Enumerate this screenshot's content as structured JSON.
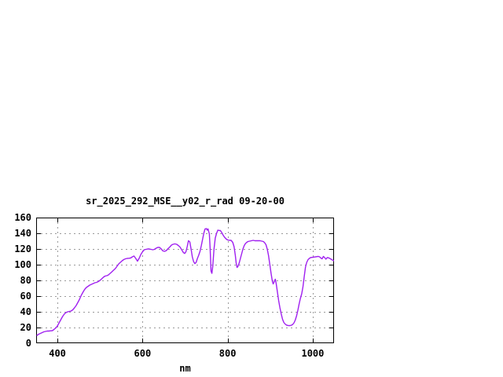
{
  "page": {
    "background_color": "#ffffff",
    "text_color": "#000000"
  },
  "style": {
    "line_color": "#a020f0",
    "grid_color": "#9a9a9a",
    "axis_color": "#000000"
  },
  "chart_data": {
    "type": "line",
    "title": "sr_2025_292_MSE__y02_r_rad 09-20-00",
    "xlabel": "nm",
    "ylabel": "",
    "xlim": [
      350,
      1050
    ],
    "ylim": [
      0,
      160
    ],
    "xticks": [
      400,
      600,
      800,
      1000
    ],
    "yticks": [
      0,
      20,
      40,
      60,
      80,
      100,
      120,
      140,
      160
    ],
    "grid": true,
    "legend_position": "none",
    "series": [
      {
        "color": "#a020f0",
        "x": [
          352,
          356,
          360,
          364,
          368,
          372,
          376,
          380,
          384,
          388,
          392,
          396,
          400,
          404,
          408,
          412,
          416,
          420,
          424,
          428,
          432,
          436,
          440,
          444,
          448,
          452,
          456,
          460,
          464,
          468,
          472,
          476,
          480,
          484,
          488,
          492,
          496,
          500,
          504,
          508,
          512,
          516,
          520,
          524,
          528,
          532,
          536,
          540,
          544,
          548,
          552,
          556,
          560,
          564,
          568,
          572,
          576,
          580,
          584,
          588,
          592,
          596,
          600,
          604,
          608,
          612,
          616,
          620,
          624,
          628,
          632,
          636,
          640,
          644,
          648,
          652,
          656,
          660,
          664,
          668,
          672,
          676,
          680,
          684,
          688,
          692,
          696,
          699,
          702,
          705,
          708,
          711,
          714,
          717,
          720,
          723,
          726,
          729,
          732,
          735,
          738,
          741,
          744,
          747,
          750,
          752,
          754,
          757,
          759,
          761,
          763,
          765,
          768,
          771,
          774,
          777,
          780,
          783,
          786,
          789,
          792,
          796,
          800,
          804,
          808,
          812,
          815,
          818,
          820,
          822,
          824,
          827,
          830,
          833,
          836,
          839,
          842,
          845,
          848,
          852,
          856,
          860,
          864,
          868,
          872,
          876,
          880,
          884,
          887,
          890,
          893,
          896,
          899,
          902,
          905,
          907,
          910,
          912,
          914,
          917,
          920,
          923,
          926,
          929,
          932,
          935,
          938,
          941,
          944,
          947,
          950,
          953,
          956,
          959,
          962,
          965,
          968,
          971,
          974,
          977,
          980,
          983,
          986,
          989,
          992,
          995,
          998,
          1001,
          1004,
          1007,
          1010,
          1013,
          1016,
          1019,
          1022,
          1025,
          1028,
          1031,
          1034,
          1037,
          1040,
          1043,
          1046,
          1050
        ],
        "y": [
          10,
          11.5,
          12.5,
          13.5,
          14.5,
          15,
          15.5,
          15.5,
          15.8,
          16,
          17.5,
          19.5,
          22,
          26,
          30,
          34,
          37,
          39,
          40,
          40.5,
          41,
          42.5,
          45,
          48,
          52,
          56,
          61,
          65,
          68.5,
          71,
          72.5,
          74,
          75,
          76,
          77,
          77.5,
          78.5,
          80,
          82,
          84,
          85.5,
          86,
          87,
          89,
          91,
          93,
          95,
          98,
          101,
          103,
          105,
          106.5,
          107.5,
          108,
          108.2,
          108.5,
          110,
          111,
          108,
          104.5,
          108,
          113,
          116.5,
          119,
          119.5,
          120,
          120,
          119.5,
          119,
          119.5,
          121,
          122,
          122,
          120,
          117.5,
          117,
          118,
          120.5,
          122.5,
          125,
          126,
          126.5,
          126,
          124.5,
          122.5,
          119,
          115.5,
          114.3,
          116.5,
          123,
          130.5,
          129,
          120,
          110,
          104,
          101.3,
          103,
          108,
          112,
          117,
          124,
          132,
          140,
          145.5,
          146,
          144,
          145.5,
          139,
          120,
          92,
          89,
          98,
          120,
          134,
          140,
          144,
          143.5,
          143.5,
          141,
          138,
          135.5,
          133,
          131.5,
          131,
          131,
          128.5,
          123,
          112,
          102,
          96.5,
          97.5,
          102,
          108,
          114,
          120,
          124.5,
          127,
          128.5,
          129.5,
          130,
          130.5,
          131,
          130.5,
          130.5,
          130.5,
          130.5,
          130,
          129.5,
          128,
          125.5,
          120,
          112,
          101,
          89,
          79,
          75.5,
          79,
          81.5,
          76,
          65,
          54,
          45,
          37,
          30.5,
          26.5,
          24.5,
          23.2,
          22.7,
          22.4,
          22.5,
          23,
          24,
          26,
          29.5,
          35,
          42,
          50,
          57,
          63,
          72,
          85,
          97,
          103,
          106.5,
          108,
          109,
          109.3,
          109.5,
          109.8,
          110,
          110.3,
          110.5,
          110,
          108.5,
          107.5,
          110.5,
          109,
          107,
          109,
          108.8,
          108,
          107,
          106,
          105
        ]
      }
    ]
  }
}
